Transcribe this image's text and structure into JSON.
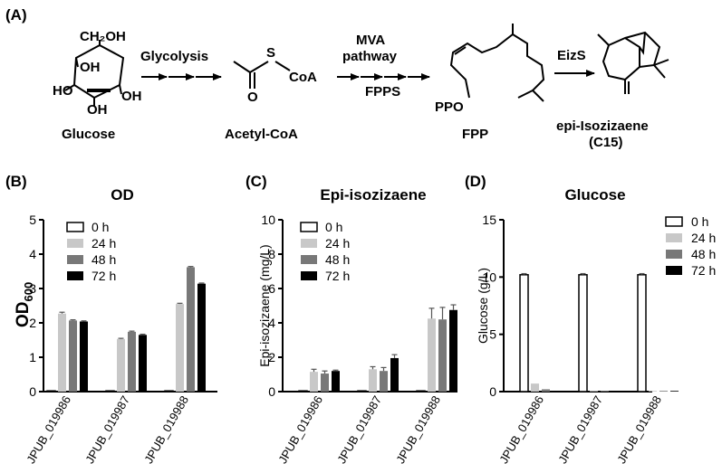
{
  "pathway": {
    "panel_label": "(A)",
    "glucose_ch2oh": "CH₂OH",
    "glucose_oh1": "OH",
    "glucose_oh2": "OH",
    "glucose_oh3": "OH",
    "glucose_ho": "HO",
    "glucose_name": "Glucose",
    "step1": "Glycolysis",
    "acetyl_s": "S",
    "acetyl_coa": "CoA",
    "acetyl_o": "O",
    "acetyl_name": "Acetyl-CoA",
    "step2a": "MVA",
    "step2b": "pathway",
    "step3": "FPPS",
    "fpp_ppo": "PPO",
    "fpp_name": "FPP",
    "step4": "EizS",
    "product_name": "epi-Isozizaene",
    "product_sub": "(C15)"
  },
  "legend": {
    "items": [
      {
        "label": "0 h",
        "color": "#ffffff"
      },
      {
        "label": "24 h",
        "color": "#c8c8c8"
      },
      {
        "label": "48 h",
        "color": "#787878"
      },
      {
        "label": "72 h",
        "color": "#000000"
      }
    ]
  },
  "chart_data": [
    {
      "panel_label": "(B)",
      "type": "bar",
      "title": "OD",
      "ylabel_main": "OD",
      "ylabel_sub": "600",
      "categories": [
        "JPUB_019986",
        "JPUB_019987",
        "JPUB_019988"
      ],
      "ylim": [
        0,
        5
      ],
      "yticks": [
        0,
        1,
        2,
        3,
        4,
        5
      ],
      "series": [
        {
          "name": "0 h",
          "values": [
            0.02,
            0.02,
            0.02
          ],
          "errors": [
            0,
            0,
            0
          ]
        },
        {
          "name": "24 h",
          "values": [
            2.27,
            1.53,
            2.55
          ],
          "errors": [
            0.04,
            0.02,
            0.02
          ]
        },
        {
          "name": "48 h",
          "values": [
            2.07,
            1.74,
            3.62
          ],
          "errors": [
            0.02,
            0.02,
            0.02
          ]
        },
        {
          "name": "72 h",
          "values": [
            2.04,
            1.65,
            3.14
          ],
          "errors": [
            0.02,
            0.02,
            0.02
          ]
        }
      ]
    },
    {
      "panel_label": "(C)",
      "type": "bar",
      "title": "Epi-isozizaene",
      "ylabel": "Epi-isozizaene (mg/L)",
      "categories": [
        "JPUB_019986",
        "JPUB_019987",
        "JPUB_019988"
      ],
      "ylim": [
        0,
        10
      ],
      "yticks": [
        0,
        2,
        4,
        6,
        8,
        10
      ],
      "series": [
        {
          "name": "0 h",
          "values": [
            0,
            0,
            0
          ],
          "errors": [
            0,
            0,
            0
          ]
        },
        {
          "name": "24 h",
          "values": [
            1.15,
            1.3,
            4.25
          ],
          "errors": [
            0.15,
            0.15,
            0.6
          ]
        },
        {
          "name": "48 h",
          "values": [
            1.05,
            1.2,
            4.2
          ],
          "errors": [
            0.15,
            0.2,
            0.7
          ]
        },
        {
          "name": "72 h",
          "values": [
            1.2,
            1.95,
            4.75
          ],
          "errors": [
            0.05,
            0.2,
            0.3
          ]
        }
      ]
    },
    {
      "panel_label": "(D)",
      "type": "bar",
      "title": "Glucose",
      "ylabel": "Glucose (g/L)",
      "categories": [
        "JPUB_019986",
        "JPUB_019987",
        "JPUB_019988"
      ],
      "ylim": [
        0,
        15
      ],
      "yticks": [
        0,
        5,
        10,
        15
      ],
      "series": [
        {
          "name": "0 h",
          "values": [
            10.2,
            10.2,
            10.2
          ],
          "errors": [
            0.1,
            0.1,
            0.1
          ]
        },
        {
          "name": "24 h",
          "values": [
            0.7,
            0,
            0
          ],
          "errors": [
            0,
            0,
            0
          ]
        },
        {
          "name": "48 h",
          "values": [
            0.2,
            0,
            0
          ],
          "errors": [
            0,
            0,
            0
          ]
        },
        {
          "name": "72 h",
          "values": [
            0,
            0,
            0
          ],
          "errors": [
            0,
            0,
            0
          ]
        }
      ]
    }
  ]
}
